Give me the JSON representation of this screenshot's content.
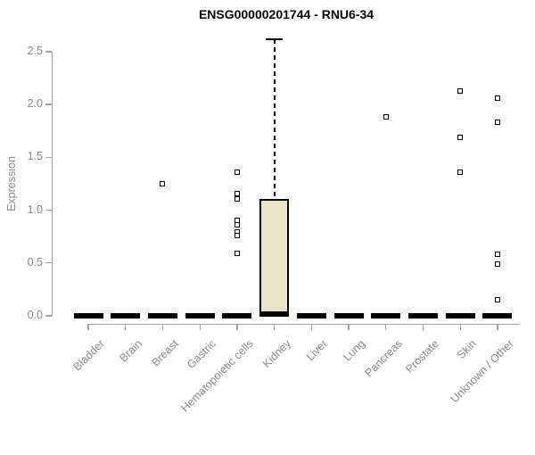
{
  "colors": {
    "axis": "#a3a3a3",
    "label_text": "#8a8a8a",
    "title": "#000000",
    "box_fill": "#ebe4c8",
    "box_border": "#000000",
    "median": "#000000",
    "whisker": "#000000",
    "outlier_border": "#000000"
  },
  "chart_data": {
    "type": "boxplot",
    "title": "ENSG00000201744 - RNU6-34",
    "ylabel": "Expression",
    "xlabel": "",
    "ylim": [
      0,
      2.5
    ],
    "yticks": [
      0,
      0.5,
      1,
      1.5,
      2,
      2.5
    ],
    "grid": false,
    "legend": "none",
    "categories": [
      "Bladder",
      "Brain",
      "Breast",
      "Gastric",
      "Hematopoietic cells",
      "Kidney",
      "Liver",
      "Lung",
      "Pancreas",
      "Prostate",
      "Skin",
      "Unknown / Other"
    ],
    "boxes": [
      {
        "category": "Bladder",
        "median": 0,
        "q1": 0,
        "q3": 0,
        "whisker_low": 0,
        "whisker_high": 0,
        "outliers": []
      },
      {
        "category": "Brain",
        "median": 0,
        "q1": 0,
        "q3": 0,
        "whisker_low": 0,
        "whisker_high": 0,
        "outliers": []
      },
      {
        "category": "Breast",
        "median": 0,
        "q1": 0,
        "q3": 0,
        "whisker_low": 0,
        "whisker_high": 0,
        "outliers": [
          1.25
        ]
      },
      {
        "category": "Gastric",
        "median": 0,
        "q1": 0,
        "q3": 0,
        "whisker_low": 0,
        "whisker_high": 0,
        "outliers": []
      },
      {
        "category": "Hematopoietic cells",
        "median": 0,
        "q1": 0,
        "q3": 0,
        "whisker_low": 0,
        "whisker_high": 0,
        "outliers": [
          1.36,
          1.16,
          1.11,
          0.9,
          0.86,
          0.79,
          0.76,
          0.59
        ]
      },
      {
        "category": "Kidney",
        "median": 0.02,
        "q1": 0.02,
        "q3": 1.11,
        "whisker_low": 0.02,
        "whisker_high": 2.62,
        "outliers": []
      },
      {
        "category": "Liver",
        "median": 0,
        "q1": 0,
        "q3": 0,
        "whisker_low": 0,
        "whisker_high": 0,
        "outliers": []
      },
      {
        "category": "Lung",
        "median": 0,
        "q1": 0,
        "q3": 0,
        "whisker_low": 0,
        "whisker_high": 0,
        "outliers": []
      },
      {
        "category": "Pancreas",
        "median": 0,
        "q1": 0,
        "q3": 0,
        "whisker_low": 0,
        "whisker_high": 0,
        "outliers": [
          1.88
        ]
      },
      {
        "category": "Prostate",
        "median": 0,
        "q1": 0,
        "q3": 0,
        "whisker_low": 0,
        "whisker_high": 0,
        "outliers": []
      },
      {
        "category": "Skin",
        "median": 0,
        "q1": 0,
        "q3": 0,
        "whisker_low": 0,
        "whisker_high": 0,
        "outliers": [
          2.13,
          1.69,
          1.36
        ]
      },
      {
        "category": "Unknown / Other",
        "median": 0,
        "q1": 0,
        "q3": 0,
        "whisker_low": 0,
        "whisker_high": 0,
        "outliers": [
          2.06,
          1.83,
          0.58,
          0.49,
          0.15
        ]
      }
    ]
  }
}
